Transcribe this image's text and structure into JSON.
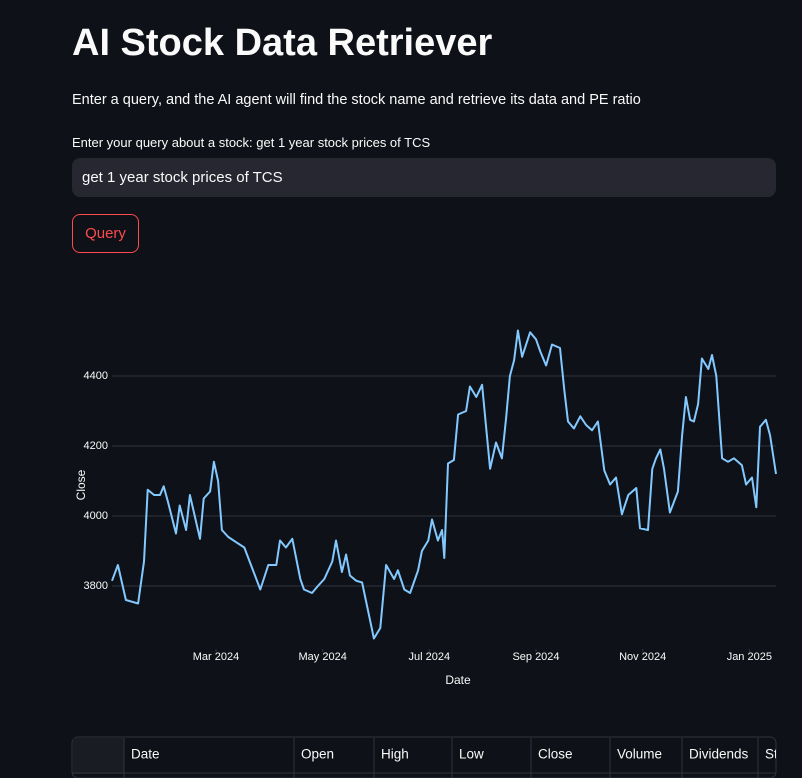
{
  "header": {
    "title": "AI Stock Data Retriever",
    "subtitle": "Enter a query, and the AI agent will find the stock name and retrieve its data and PE ratio"
  },
  "query": {
    "label": "Enter your query about a stock: get 1 year stock prices of TCS",
    "value": "get 1 year stock prices of TCS",
    "button": "Query"
  },
  "chart_data": {
    "type": "line",
    "xlabel": "Date",
    "ylabel": "Close",
    "color": "#83c9ff",
    "grid": true,
    "x": [
      1.05,
      1.16,
      1.31,
      1.54,
      1.65,
      1.72,
      1.84,
      1.95,
      2.02,
      2.1,
      2.25,
      2.32,
      2.44,
      2.51,
      2.7,
      2.77,
      2.89,
      2.96,
      3.04,
      3.11,
      3.23,
      3.38,
      3.53,
      3.68,
      3.83,
      3.98,
      4.13,
      4.2,
      4.31,
      4.43,
      4.58,
      4.65,
      4.8,
      4.91,
      5.03,
      5.18,
      5.25,
      5.36,
      5.44,
      5.51,
      5.63,
      5.74,
      5.85,
      5.96,
      6.08,
      6.19,
      6.34,
      6.41,
      6.53,
      6.64,
      6.79,
      6.86,
      6.98,
      7.05,
      7.16,
      7.24,
      7.28,
      7.35,
      7.46,
      7.54,
      7.69,
      7.76,
      7.88,
      7.99,
      8.06,
      8.14,
      8.25,
      8.36,
      8.44,
      8.51,
      8.59,
      8.66,
      8.74,
      8.89,
      9.0,
      9.08,
      9.19,
      9.3,
      9.45,
      9.53,
      9.6,
      9.71,
      9.83,
      9.94,
      10.05,
      10.16,
      10.28,
      10.39,
      10.5,
      10.61,
      10.73,
      10.88,
      10.95,
      11.1,
      11.18,
      11.25,
      11.33,
      11.4,
      11.51,
      11.66,
      11.74,
      11.81,
      11.89,
      11.96,
      12.04,
      12.11,
      12.23,
      12.3,
      12.38,
      12.49,
      12.6,
      12.71,
      12.86,
      12.94,
      13.05,
      13.13,
      13.2,
      13.31,
      13.39,
      13.5
    ],
    "values": [
      3815,
      3860,
      3760,
      3750,
      3870,
      4075,
      4060,
      4060,
      4085,
      4040,
      3950,
      4030,
      3960,
      4060,
      3935,
      4050,
      4070,
      4155,
      4100,
      3960,
      3940,
      3925,
      3910,
      3850,
      3790,
      3860,
      3860,
      3930,
      3910,
      3935,
      3820,
      3790,
      3780,
      3800,
      3820,
      3870,
      3930,
      3840,
      3890,
      3830,
      3815,
      3810,
      3730,
      3650,
      3680,
      3860,
      3820,
      3845,
      3790,
      3780,
      3845,
      3900,
      3930,
      3990,
      3930,
      3960,
      3880,
      4150,
      4160,
      4290,
      4300,
      4370,
      4340,
      4375,
      4260,
      4135,
      4210,
      4165,
      4280,
      4400,
      4445,
      4530,
      4455,
      4525,
      4505,
      4470,
      4430,
      4490,
      4480,
      4360,
      4270,
      4250,
      4285,
      4260,
      4245,
      4270,
      4130,
      4090,
      4110,
      4005,
      4060,
      4080,
      3965,
      3960,
      4135,
      4165,
      4190,
      4135,
      4010,
      4070,
      4230,
      4340,
      4275,
      4270,
      4320,
      4450,
      4420,
      4460,
      4400,
      4165,
      4155,
      4165,
      4145,
      4090,
      4110,
      4025,
      4255,
      4275,
      4230,
      4120
    ],
    "xlim": [
      1.05,
      13.5
    ],
    "xticks": [
      {
        "value": 3,
        "label": "Mar 2024"
      },
      {
        "value": 5,
        "label": "May 2024"
      },
      {
        "value": 7,
        "label": "Jul 2024"
      },
      {
        "value": 9,
        "label": "Sep 2024"
      },
      {
        "value": 11,
        "label": "Nov 2024"
      },
      {
        "value": 13,
        "label": "Jan 2025"
      }
    ],
    "ylim": [
      3620,
      4620
    ],
    "yticks": [
      3800,
      4000,
      4200,
      4400
    ]
  },
  "table": {
    "columns": [
      "Date",
      "Open",
      "High",
      "Low",
      "Close",
      "Volume",
      "Dividends",
      "Stock Splits"
    ]
  }
}
